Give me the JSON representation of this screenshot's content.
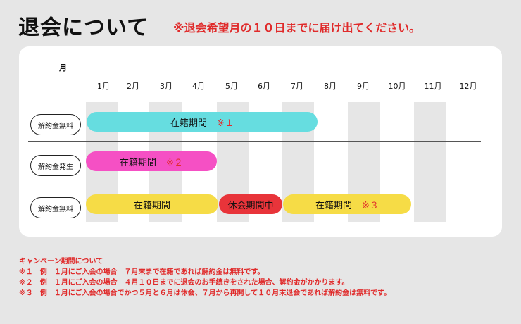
{
  "title": "退会について",
  "notice": "※退会希望月の１０日までに届け出てください。",
  "timeline": {
    "axis_label": "月",
    "months": [
      "1月",
      "2月",
      "3月",
      "4月",
      "5月",
      "6月",
      "7月",
      "8月",
      "9月",
      "10月",
      "11月",
      "12月"
    ]
  },
  "rows": [
    {
      "label": "解約金無料",
      "bars": [
        {
          "text": "在籍期間",
          "mark": "※１",
          "color": "#66dde0"
        }
      ]
    },
    {
      "label": "解約金発生",
      "bars": [
        {
          "text": "在籍期間",
          "mark": "※２",
          "color": "#f550c4"
        }
      ]
    },
    {
      "label": "解約金無料",
      "bars": [
        {
          "text": "在籍期間",
          "mark": "",
          "color": "#f6dc46"
        },
        {
          "text": "休会期間中",
          "mark": "",
          "color": "#e8343a"
        },
        {
          "text": "在籍期間",
          "mark": "※３",
          "color": "#f6dc46"
        }
      ]
    }
  ],
  "notes": {
    "heading": "キャンペーン期間について",
    "items": [
      "※１　例　１月にご入会の場合　７月末まで在籍であれば解約金は無料です。",
      "※２　例　１月にご入会の場合　４月１０日までに退会のお手続きをされた場合、解約金がかかります。",
      "※３　例　１月にご入会の場合でかつ５月と６月は休会、７月から再開して１０月末退会であれば解約金は無料です。"
    ]
  }
}
